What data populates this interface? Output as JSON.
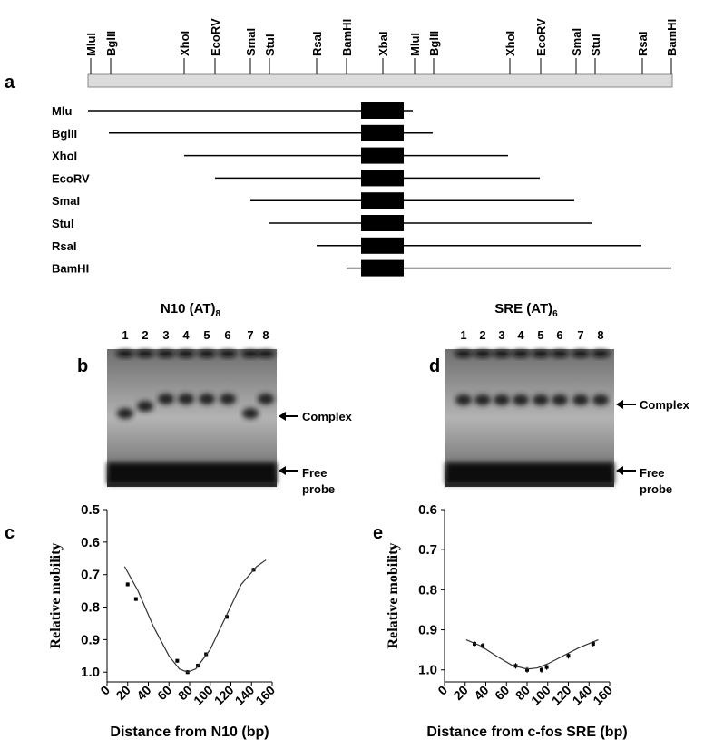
{
  "restriction_map": {
    "sites": [
      "MluI",
      "BglII",
      "XhoI",
      "EcoRV",
      "SmaI",
      "StuI",
      "RsaI",
      "BamHI",
      "XbaI",
      "MluI",
      "BglII",
      "XhoI",
      "EcoRV",
      "SmaI",
      "StuI",
      "RsaI",
      "BamHI"
    ],
    "rows": [
      "Mlu",
      "BglII",
      "XhoI",
      "EcoRV",
      "SmaI",
      "StuI",
      "RsaI",
      "BamHI"
    ]
  },
  "panel_labels": [
    "a",
    "b",
    "c",
    "d",
    "e"
  ],
  "gels": [
    {
      "title": "N10 (AT)",
      "title_sub": "8",
      "lanes": [
        "1",
        "2",
        "3",
        "4",
        "5",
        "6",
        "7",
        "8"
      ],
      "complex": "Complex",
      "free": "Free",
      "probe": "probe"
    },
    {
      "title": "SRE (AT)",
      "title_sub": "6",
      "lanes": [
        "1",
        "2",
        "3",
        "4",
        "5",
        "6",
        "7",
        "8"
      ],
      "complex": "Complex",
      "free": "Free",
      "probe": "probe"
    }
  ],
  "chart_data": [
    {
      "type": "line",
      "x_label": "Distance from N10 (bp)",
      "y_label": "Relative mobility",
      "xlim": [
        0,
        160
      ],
      "xticks": [
        0,
        20,
        40,
        60,
        80,
        100,
        120,
        140,
        160
      ],
      "ylim": [
        0.5,
        1.03
      ],
      "yticks": [
        0.5,
        0.6,
        0.7,
        0.8,
        0.9,
        {
          "value": 1,
          "label": "1.0"
        }
      ],
      "y_inverted": true,
      "series": [
        {
          "style": "points",
          "color": "#000000",
          "x": [
            20,
            28,
            68,
            78,
            88,
            96,
            116,
            142
          ],
          "values": [
            0.73,
            0.775,
            0.965,
            1.0,
            0.98,
            0.945,
            0.83,
            0.685
          ],
          "errors": [
            0.006,
            0.006,
            0.006,
            0.006,
            0.006,
            0.006,
            0.006,
            0.006
          ]
        },
        {
          "style": "line",
          "color": "#333333",
          "x": [
            17,
            30,
            45,
            60,
            70,
            78,
            86,
            100,
            115,
            130,
            145,
            154
          ],
          "values": [
            0.675,
            0.75,
            0.86,
            0.95,
            0.99,
            1.0,
            0.99,
            0.93,
            0.83,
            0.73,
            0.675,
            0.655
          ]
        }
      ]
    },
    {
      "type": "line",
      "x_label": "Distance from c-fos SRE (bp)",
      "y_label": "Relative mobility",
      "xlim": [
        0,
        160
      ],
      "xticks": [
        0,
        20,
        40,
        60,
        80,
        100,
        120,
        140,
        160
      ],
      "ylim": [
        0.6,
        1.03
      ],
      "yticks": [
        0.6,
        0.7,
        0.8,
        0.9,
        {
          "value": 1,
          "label": "1.0"
        }
      ],
      "y_inverted": true,
      "series": [
        {
          "style": "points",
          "color": "#000000",
          "x": [
            29,
            37,
            69,
            80,
            94,
            99,
            120,
            144
          ],
          "values": [
            0.935,
            0.94,
            0.99,
            1.0,
            1.0,
            0.993,
            0.965,
            0.935
          ],
          "errors": [
            0.007,
            0.007,
            0.007,
            0.007,
            0.007,
            0.007,
            0.007,
            0.007
          ]
        },
        {
          "style": "line",
          "color": "#333333",
          "x": [
            21,
            35,
            50,
            65,
            80,
            90,
            100,
            115,
            130,
            149
          ],
          "values": [
            0.925,
            0.94,
            0.965,
            0.988,
            0.998,
            0.995,
            0.985,
            0.965,
            0.945,
            0.925
          ]
        }
      ]
    }
  ]
}
